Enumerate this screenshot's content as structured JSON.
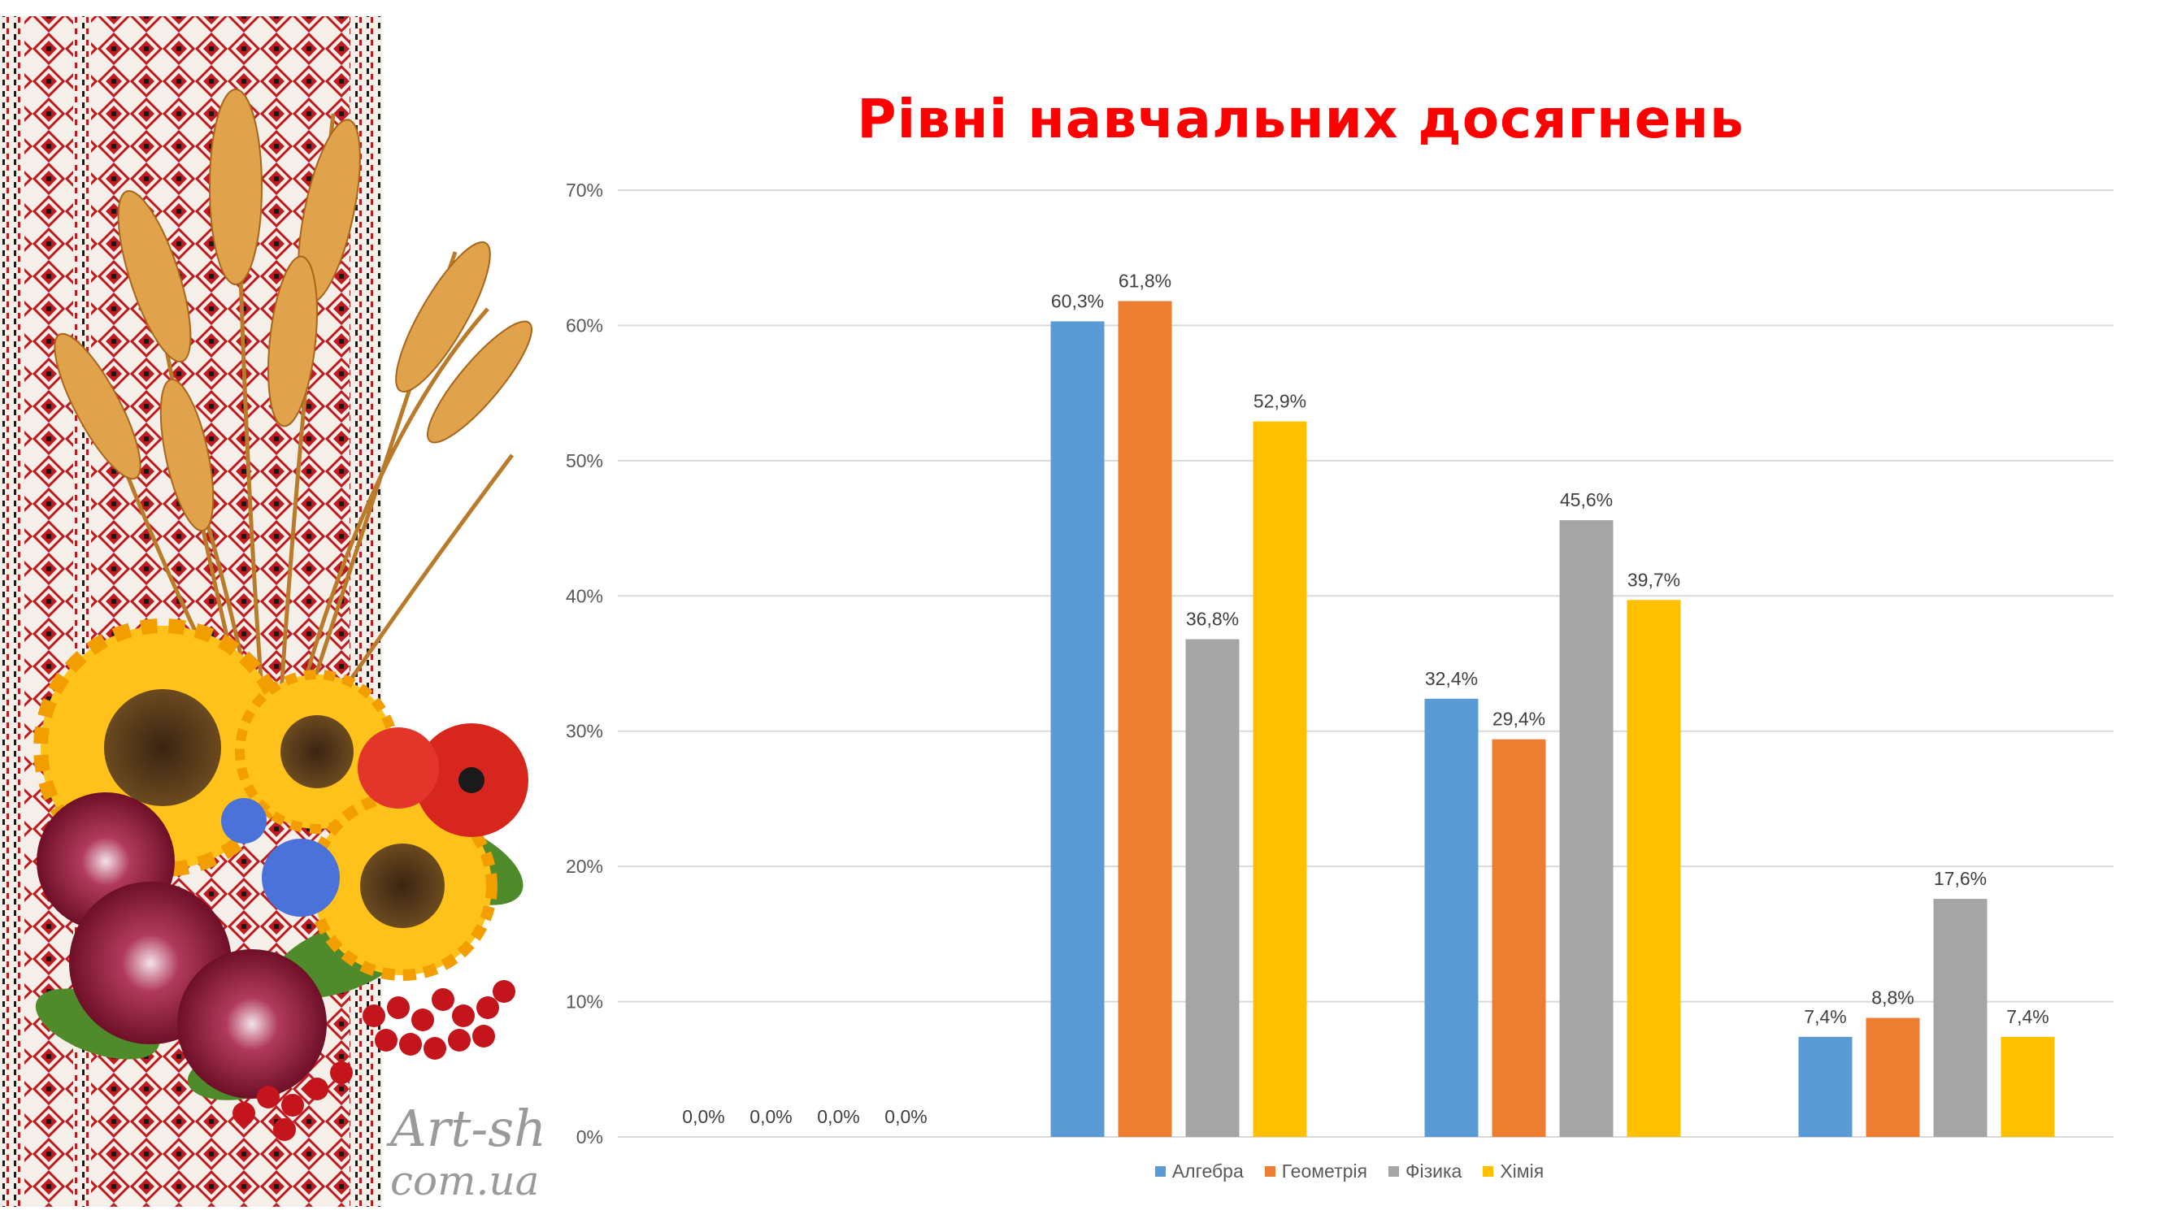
{
  "colors": {
    "title": "#ff0000",
    "series": [
      "#5b9bd5",
      "#ed7d31",
      "#a5a5a5",
      "#ffc000"
    ],
    "grid": "#d9d9d9",
    "axis_text": "#595959"
  },
  "decor": {
    "watermark_line1": "Art-sh",
    "watermark_line2": "com.ua"
  },
  "chart_data": {
    "type": "bar",
    "title": "Рівні навчальних досягнень",
    "xlabel": "",
    "ylabel": "",
    "ylim": [
      0,
      70
    ],
    "yticks": [
      "0%",
      "10%",
      "20%",
      "30%",
      "40%",
      "50%",
      "60%",
      "70%"
    ],
    "grid": true,
    "legend_position": "bottom",
    "categories": [
      "",
      "",
      "",
      ""
    ],
    "series": [
      {
        "name": "Алгебра",
        "values": [
          0,
          60.3,
          32.4,
          7.4
        ],
        "labels": [
          "0,0%",
          "60,3%",
          "32,4%",
          "7,4%"
        ]
      },
      {
        "name": "Геометрія",
        "values": [
          0,
          61.8,
          29.4,
          8.8
        ],
        "labels": [
          "0,0%",
          "61,8%",
          "29,4%",
          "8,8%"
        ]
      },
      {
        "name": "Фізика",
        "values": [
          0,
          36.8,
          45.6,
          17.6
        ],
        "labels": [
          "0,0%",
          "36,8%",
          "45,6%",
          "17,6%"
        ]
      },
      {
        "name": "Хімія",
        "values": [
          0,
          52.9,
          39.7,
          7.4
        ],
        "labels": [
          "0,0%",
          "52,9%",
          "39,7%",
          "7,4%"
        ]
      }
    ]
  }
}
